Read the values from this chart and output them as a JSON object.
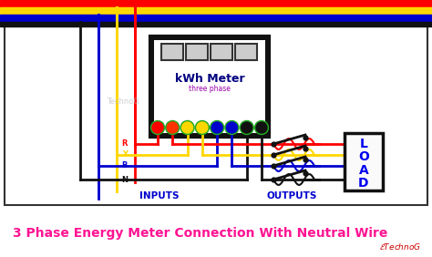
{
  "title": "3 Phase Energy Meter Connection With Neutral Wire",
  "title_color": "#FF1493",
  "title_fontsize": 10,
  "bg_color": "#FFFFFF",
  "wire_colors": {
    "red": "#FF0000",
    "yellow": "#FFD700",
    "blue": "#0000CD",
    "black": "#111111"
  },
  "meter_outer_color": "#111111",
  "meter_inner_color": "#FFFFFF",
  "meter_label": "kWh Meter",
  "meter_sublabel": "three phase",
  "meter_label_color": "#000080",
  "meter_sublabel_color": "#9900AA",
  "display_fill": "#CCCCCC",
  "display_edge": "#333333",
  "load_box_color": "#111111",
  "load_text": "LOAD",
  "load_text_color": "#0000EE",
  "inputs_label": "INPUTS",
  "outputs_label": "OUTPUTS",
  "label_color": "#0000CD",
  "diagram_border_color": "#333333",
  "term_colors": [
    "#FF0000",
    "#FF4400",
    "#FFD700",
    "#FFD700",
    "#0000CD",
    "#0000CD",
    "#111111",
    "#111111"
  ],
  "watermark_color": "#BBBBBB",
  "etechnog_color": "#CC0000",
  "switch_color": "#111111"
}
